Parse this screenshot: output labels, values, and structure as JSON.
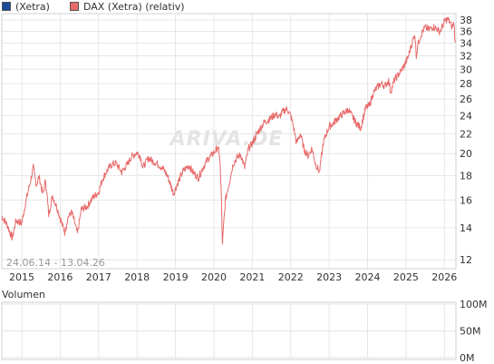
{
  "legend": {
    "items": [
      {
        "label": "(Xetra)",
        "color": "#1e4a9c"
      },
      {
        "label": "DAX (Xetra) (relativ)",
        "color": "#e86a6a"
      }
    ]
  },
  "watermark": "ARIVA.DE",
  "date_range": "24.06.14 - 13.04.26",
  "volume": {
    "legend_label": "Volumen",
    "legend_color": "#cccccc",
    "ticks": [
      "100M",
      "50M",
      "0M"
    ],
    "tick_values": [
      100,
      50,
      0
    ]
  },
  "chart_data": {
    "type": "line",
    "series": [
      {
        "name": "DAX (Xetra) (relativ)",
        "color": "#e86a6a",
        "x": [
          2014.48,
          2014.62,
          2014.75,
          2014.85,
          2015.0,
          2015.1,
          2015.22,
          2015.3,
          2015.38,
          2015.45,
          2015.55,
          2015.62,
          2015.7,
          2015.8,
          2015.92,
          2016.05,
          2016.12,
          2016.2,
          2016.3,
          2016.45,
          2016.55,
          2016.7,
          2016.85,
          2017.0,
          2017.1,
          2017.25,
          2017.35,
          2017.45,
          2017.6,
          2017.75,
          2017.85,
          2018.0,
          2018.08,
          2018.15,
          2018.3,
          2018.4,
          2018.55,
          2018.7,
          2018.8,
          2018.95,
          2019.05,
          2019.2,
          2019.35,
          2019.45,
          2019.6,
          2019.7,
          2019.85,
          2020.0,
          2020.1,
          2020.15,
          2020.2,
          2020.22,
          2020.3,
          2020.4,
          2020.5,
          2020.6,
          2020.7,
          2020.8,
          2020.9,
          2021.0,
          2021.15,
          2021.3,
          2021.45,
          2021.6,
          2021.7,
          2021.8,
          2021.9,
          2022.0,
          2022.08,
          2022.15,
          2022.25,
          2022.35,
          2022.45,
          2022.55,
          2022.65,
          2022.75,
          2022.85,
          2023.0,
          2023.1,
          2023.2,
          2023.35,
          2023.5,
          2023.6,
          2023.7,
          2023.82,
          2023.95,
          2024.05,
          2024.15,
          2024.25,
          2024.35,
          2024.45,
          2024.55,
          2024.6,
          2024.7,
          2024.85,
          2024.95,
          2025.05,
          2025.15,
          2025.23,
          2025.27,
          2025.32,
          2025.4,
          2025.5,
          2025.6,
          2025.7,
          2025.8,
          2025.88,
          2025.95,
          2026.0,
          2026.08,
          2026.15,
          2026.2,
          2026.25,
          2026.28
        ],
        "y": [
          14.8,
          14.2,
          13.3,
          14.5,
          14.3,
          15.8,
          17.4,
          18.7,
          17.2,
          17.9,
          16.4,
          17.6,
          14.9,
          16.3,
          15.4,
          14.2,
          13.7,
          14.7,
          15.1,
          13.6,
          15.3,
          15.5,
          16.2,
          16.6,
          17.7,
          18.6,
          19.0,
          19.1,
          18.3,
          19.0,
          19.7,
          20.1,
          19.8,
          18.7,
          19.6,
          19.3,
          19.0,
          18.5,
          17.9,
          16.5,
          17.3,
          18.4,
          18.9,
          18.3,
          17.8,
          18.6,
          19.5,
          20.1,
          20.6,
          19.8,
          15.8,
          12.8,
          16.0,
          17.4,
          19.0,
          19.6,
          19.9,
          18.7,
          20.5,
          21.0,
          22.2,
          23.2,
          23.6,
          24.2,
          23.8,
          24.5,
          24.8,
          24.0,
          22.6,
          21.0,
          22.0,
          20.4,
          19.8,
          20.5,
          19.0,
          18.3,
          21.1,
          22.8,
          23.1,
          23.6,
          24.2,
          24.7,
          23.9,
          23.2,
          22.6,
          24.9,
          25.2,
          26.8,
          27.5,
          28.0,
          27.7,
          28.4,
          26.9,
          28.5,
          29.6,
          30.5,
          31.7,
          33.9,
          35.5,
          32.1,
          34.0,
          35.6,
          36.7,
          36.3,
          36.8,
          36.5,
          35.9,
          36.9,
          37.7,
          38.2,
          37.5,
          36.7,
          37.5,
          34.1
        ]
      }
    ],
    "x_ticks": [
      2015,
      2016,
      2017,
      2018,
      2019,
      2020,
      2021,
      2022,
      2023,
      2024,
      2025,
      2026
    ],
    "x_tick_labels": [
      "2015",
      "2016",
      "2017",
      "2018",
      "2019",
      "2020",
      "2021",
      "2022",
      "2023",
      "2024",
      "2025",
      "2026"
    ],
    "y_ticks": [
      12,
      14,
      16,
      18,
      20,
      22,
      24,
      26,
      28,
      30,
      32,
      34,
      36,
      38
    ],
    "y_tick_labels": [
      "12",
      "14",
      "16",
      "18",
      "20",
      "22",
      "24",
      "26",
      "28",
      "30",
      "32",
      "34",
      "36",
      "38"
    ],
    "xlim": [
      2014.48,
      2026.3
    ],
    "ylim": [
      11.5,
      39.2
    ],
    "yscale": "log",
    "grid": true
  }
}
